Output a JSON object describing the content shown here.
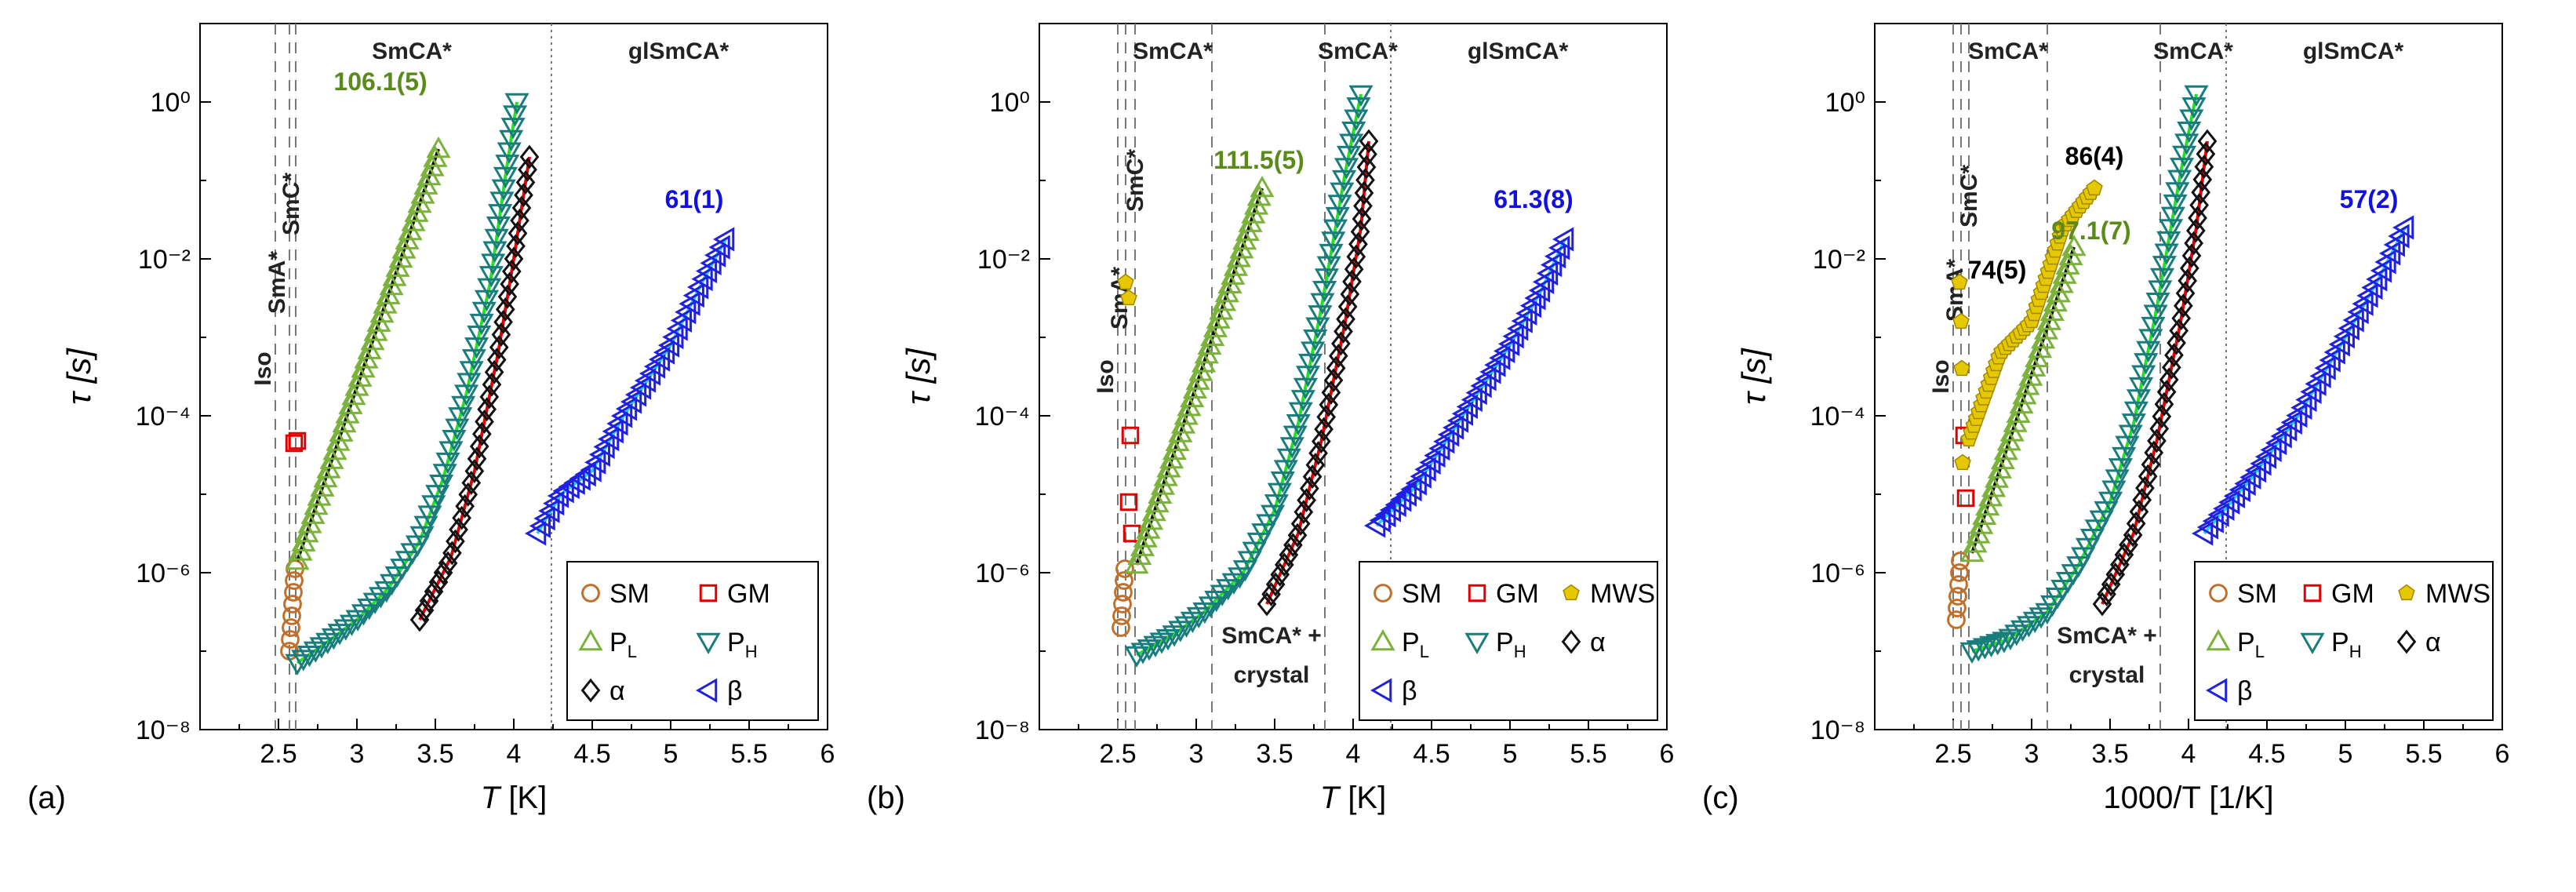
{
  "colors": {
    "sm": "#c0702a",
    "gm": "#e00000",
    "mws": "#e6c800",
    "pl": "#7bb23b",
    "ph": "#1a7d7d",
    "alpha": "#111111",
    "beta": "#2020e0",
    "fit_black": "#000000",
    "fit_green": "#22e022",
    "fit_red": "#e00000",
    "fit_cyan": "#22d0ff",
    "label_green": "#5a8a1a",
    "label_blue": "#1010e0"
  },
  "chart_data": [
    {
      "type": "scatter",
      "panel_label": "(a)",
      "xlabel_italic": "T",
      "xlabel_rest": " [K]",
      "ylabel": "τ [s]",
      "xlim": [
        2.0,
        6.0
      ],
      "ylim_log10": [
        -8,
        1
      ],
      "x_ticks": [
        "2.5",
        "3",
        "3.5",
        "4",
        "4.5",
        "5",
        "5.5",
        "6"
      ],
      "y_ticks": [
        "10⁰",
        "10⁻²",
        "10⁻⁴",
        "10⁻⁶",
        "10⁻⁸"
      ],
      "phase_lines": [
        {
          "x": 2.48,
          "style": "dashed"
        },
        {
          "x": 2.57,
          "style": "dashed"
        },
        {
          "x": 2.61,
          "style": "dashed"
        },
        {
          "x": 4.24,
          "style": "dotted"
        }
      ],
      "phase_labels": [
        {
          "text": "Iso",
          "x": 2.45,
          "logy": -3.4,
          "rotate": true
        },
        {
          "text": "SmA*",
          "x": 2.54,
          "logy": -2.3,
          "rotate": true
        },
        {
          "text": "SmC*",
          "x": 2.63,
          "logy": -1.3,
          "rotate": true
        },
        {
          "text": "SmCA*",
          "x": 3.35,
          "logy": 0.55,
          "rotate": false
        },
        {
          "text": "glSmCA*",
          "x": 5.05,
          "logy": 0.55,
          "rotate": false
        }
      ],
      "value_labels": [
        {
          "text": "106.1(5)",
          "x": 3.15,
          "logy": 0.15,
          "color": "label_green"
        },
        {
          "text": "61(1)",
          "x": 5.15,
          "logy": -1.35,
          "color": "label_blue"
        }
      ],
      "series": [
        {
          "key": "sm",
          "name": "SM",
          "marker": "circle",
          "points": [
            [
              2.57,
              -7.0
            ],
            [
              2.575,
              -6.85
            ],
            [
              2.58,
              -6.7
            ],
            [
              2.585,
              -6.55
            ],
            [
              2.59,
              -6.4
            ],
            [
              2.595,
              -6.25
            ],
            [
              2.6,
              -6.1
            ],
            [
              2.605,
              -5.95
            ]
          ]
        },
        {
          "key": "gm",
          "name": "GM",
          "marker": "square",
          "points": [
            [
              2.6,
              -4.35
            ],
            [
              2.62,
              -4.32
            ]
          ]
        },
        {
          "key": "pl",
          "name": "P_L",
          "marker": "triangle-up",
          "fit": "fit_black",
          "start": [
            2.62,
            -5.85
          ],
          "end": [
            3.52,
            -0.6
          ],
          "n": 46
        },
        {
          "key": "ph",
          "name": "P_H",
          "marker": "triangle-down",
          "fit": "fit_green",
          "points": [
            [
              2.62,
              -7.15
            ],
            [
              2.8,
              -6.9
            ],
            [
              3.0,
              -6.6
            ],
            [
              3.2,
              -6.2
            ],
            [
              3.4,
              -5.6
            ],
            [
              3.55,
              -4.8
            ],
            [
              3.7,
              -3.7
            ],
            [
              3.85,
              -2.3
            ],
            [
              3.95,
              -0.9
            ],
            [
              4.02,
              0.0
            ]
          ],
          "n": 60
        },
        {
          "key": "alpha",
          "name": "α",
          "marker": "diamond",
          "fit": "fit_red",
          "points": [
            [
              3.4,
              -6.6
            ],
            [
              3.6,
              -5.8
            ],
            [
              3.75,
              -4.7
            ],
            [
              3.9,
              -3.2
            ],
            [
              4.0,
              -2.0
            ],
            [
              4.1,
              -0.7
            ]
          ],
          "n": 40
        },
        {
          "key": "beta",
          "name": "β",
          "marker": "triangle-left",
          "fit": "fit_cyan",
          "points": [
            [
              4.15,
              -5.5
            ],
            [
              4.3,
              -5.0
            ],
            [
              4.5,
              -4.7
            ],
            [
              4.7,
              -4.0
            ],
            [
              5.0,
              -3.1
            ],
            [
              5.2,
              -2.3
            ],
            [
              5.35,
              -1.75
            ]
          ],
          "n": 42
        }
      ],
      "legend": {
        "placement": "bottom-right",
        "columns": 2,
        "entries": [
          [
            "sm",
            "SM"
          ],
          [
            "gm",
            "GM"
          ],
          [
            "pl",
            "P",
            "L"
          ],
          [
            "ph",
            "P",
            "H"
          ],
          [
            "alpha",
            "α"
          ],
          [
            "beta",
            "β"
          ]
        ]
      }
    },
    {
      "type": "scatter",
      "panel_label": "(b)",
      "xlabel_italic": "T",
      "xlabel_rest": " [K]",
      "ylabel": "τ [s]",
      "xlim": [
        2.0,
        6.0
      ],
      "ylim_log10": [
        -8,
        1
      ],
      "x_ticks": [
        "2.5",
        "3",
        "3.5",
        "4",
        "4.5",
        "5",
        "5.5",
        "6"
      ],
      "y_ticks": [
        "10⁰",
        "10⁻²",
        "10⁻⁴",
        "10⁻⁶",
        "10⁻⁸"
      ],
      "phase_lines": [
        {
          "x": 2.5,
          "style": "dashed"
        },
        {
          "x": 2.55,
          "style": "dashed"
        },
        {
          "x": 2.61,
          "style": "dashed"
        },
        {
          "x": 3.1,
          "style": "dashed"
        },
        {
          "x": 3.82,
          "style": "dashed"
        },
        {
          "x": 4.24,
          "style": "dotted"
        }
      ],
      "phase_labels": [
        {
          "text": "Iso",
          "x": 2.47,
          "logy": -3.5,
          "rotate": true
        },
        {
          "text": "SmA*",
          "x": 2.56,
          "logy": -2.5,
          "rotate": true
        },
        {
          "text": "SmC*",
          "x": 2.66,
          "logy": -1.0,
          "rotate": true
        },
        {
          "text": "SmCA*",
          "x": 2.85,
          "logy": 0.55,
          "rotate": false
        },
        {
          "text": "SmCA*",
          "x": 4.03,
          "logy": 0.55,
          "rotate": false
        },
        {
          "text": "glSmCA*",
          "x": 5.05,
          "logy": 0.55,
          "rotate": false
        },
        {
          "text": "SmCA* +",
          "x": 3.48,
          "logy": -6.9,
          "rotate": false
        },
        {
          "text": "crystal",
          "x": 3.48,
          "logy": -7.4,
          "rotate": false
        }
      ],
      "value_labels": [
        {
          "text": "111.5(5)",
          "x": 3.4,
          "logy": -0.85,
          "color": "label_green"
        },
        {
          "text": "61.3(8)",
          "x": 5.15,
          "logy": -1.35,
          "color": "label_blue"
        }
      ],
      "series": [
        {
          "key": "sm",
          "name": "SM",
          "marker": "circle",
          "points": [
            [
              2.52,
              -6.7
            ],
            [
              2.525,
              -6.55
            ],
            [
              2.53,
              -6.4
            ],
            [
              2.535,
              -6.25
            ],
            [
              2.54,
              -6.1
            ],
            [
              2.545,
              -5.95
            ]
          ]
        },
        {
          "key": "gm",
          "name": "GM",
          "marker": "square",
          "points": [
            [
              2.58,
              -4.25
            ],
            [
              2.57,
              -5.1
            ],
            [
              2.59,
              -5.5
            ]
          ]
        },
        {
          "key": "mws",
          "name": "MWS",
          "marker": "pentagon",
          "points": [
            [
              2.55,
              -2.3
            ],
            [
              2.57,
              -2.5
            ]
          ]
        },
        {
          "key": "pl",
          "name": "P_L",
          "marker": "triangle-up",
          "fit": "fit_black",
          "start": [
            2.62,
            -5.9
          ],
          "end": [
            3.42,
            -1.1
          ],
          "n": 44
        },
        {
          "key": "ph",
          "name": "P_H",
          "marker": "triangle-down",
          "fit": "fit_green",
          "points": [
            [
              2.62,
              -7.05
            ],
            [
              2.85,
              -6.8
            ],
            [
              3.05,
              -6.5
            ],
            [
              3.3,
              -6.0
            ],
            [
              3.5,
              -5.2
            ],
            [
              3.65,
              -4.1
            ],
            [
              3.8,
              -2.6
            ],
            [
              3.95,
              -0.9
            ],
            [
              4.05,
              0.1
            ]
          ],
          "n": 60
        },
        {
          "key": "alpha",
          "name": "α",
          "marker": "diamond",
          "fit": "fit_red",
          "points": [
            [
              3.45,
              -6.4
            ],
            [
              3.65,
              -5.5
            ],
            [
              3.8,
              -4.3
            ],
            [
              3.95,
              -2.8
            ],
            [
              4.05,
              -1.6
            ],
            [
              4.1,
              -0.5
            ]
          ],
          "n": 40
        },
        {
          "key": "beta",
          "name": "β",
          "marker": "triangle-left",
          "fit": "fit_cyan",
          "points": [
            [
              4.15,
              -5.4
            ],
            [
              4.4,
              -4.9
            ],
            [
              4.7,
              -4.0
            ],
            [
              5.0,
              -3.1
            ],
            [
              5.2,
              -2.4
            ],
            [
              5.35,
              -1.75
            ]
          ],
          "n": 42
        }
      ],
      "legend": {
        "placement": "bottom-right",
        "columns": 3,
        "entries": [
          [
            "sm",
            "SM"
          ],
          [
            "gm",
            "GM"
          ],
          [
            "mws",
            "MWS"
          ],
          [
            "pl",
            "P",
            "L"
          ],
          [
            "ph",
            "P",
            "H"
          ],
          [
            "alpha",
            "α"
          ],
          [
            "beta",
            "β"
          ]
        ]
      }
    },
    {
      "type": "scatter",
      "panel_label": "(c)",
      "xlabel_italic": "",
      "xlabel_rest": "1000/T [1/K]",
      "ylabel": "τ [s]",
      "xlim": [
        2.0,
        6.0
      ],
      "ylim_log10": [
        -8,
        1
      ],
      "x_ticks": [
        "2.5",
        "3",
        "3.5",
        "4",
        "4.5",
        "5",
        "5.5",
        "6"
      ],
      "y_ticks": [
        "10⁰",
        "10⁻²",
        "10⁻⁴",
        "10⁻⁶",
        "10⁻⁸"
      ],
      "phase_lines": [
        {
          "x": 2.5,
          "style": "dashed"
        },
        {
          "x": 2.55,
          "style": "dashed"
        },
        {
          "x": 2.6,
          "style": "dashed"
        },
        {
          "x": 3.1,
          "style": "dashed"
        },
        {
          "x": 3.82,
          "style": "dashed"
        },
        {
          "x": 4.24,
          "style": "dotted"
        }
      ],
      "phase_labels": [
        {
          "text": "Iso",
          "x": 2.47,
          "logy": -3.5,
          "rotate": true
        },
        {
          "text": "SmA*",
          "x": 2.56,
          "logy": -2.4,
          "rotate": true
        },
        {
          "text": "SmC*",
          "x": 2.65,
          "logy": -1.2,
          "rotate": true
        },
        {
          "text": "SmCA*",
          "x": 2.85,
          "logy": 0.55,
          "rotate": false
        },
        {
          "text": "SmCA*",
          "x": 4.03,
          "logy": 0.55,
          "rotate": false
        },
        {
          "text": "glSmCA*",
          "x": 5.05,
          "logy": 0.55,
          "rotate": false
        },
        {
          "text": "SmCA* +",
          "x": 3.48,
          "logy": -6.9,
          "rotate": false
        },
        {
          "text": "crystal",
          "x": 3.48,
          "logy": -7.4,
          "rotate": false
        }
      ],
      "value_labels": [
        {
          "text": "86(4)",
          "x": 3.4,
          "logy": -0.8,
          "color": "fit_black"
        },
        {
          "text": "74(5)",
          "x": 2.78,
          "logy": -2.25,
          "color": "fit_black"
        },
        {
          "text": "97.1(7)",
          "x": 3.38,
          "logy": -1.75,
          "color": "label_green"
        },
        {
          "text": "57(2)",
          "x": 5.15,
          "logy": -1.35,
          "color": "label_blue"
        }
      ],
      "series": [
        {
          "key": "sm",
          "name": "SM",
          "marker": "circle",
          "points": [
            [
              2.52,
              -6.6
            ],
            [
              2.525,
              -6.45
            ],
            [
              2.53,
              -6.3
            ],
            [
              2.535,
              -6.15
            ],
            [
              2.54,
              -6.0
            ],
            [
              2.545,
              -5.85
            ]
          ]
        },
        {
          "key": "gm",
          "name": "GM",
          "marker": "square",
          "points": [
            [
              2.57,
              -4.25
            ],
            [
              2.58,
              -5.05
            ]
          ]
        },
        {
          "key": "mws",
          "name": "MWS",
          "marker": "pentagon",
          "fit": "fit_black",
          "points": [
            [
              2.6,
              -4.3
            ],
            [
              2.8,
              -3.2
            ],
            [
              3.0,
              -2.8
            ],
            [
              3.2,
              -1.6
            ],
            [
              3.4,
              -1.1
            ]
          ],
          "n": 44,
          "extra": [
            [
              2.54,
              -2.3
            ],
            [
              2.55,
              -2.8
            ],
            [
              2.555,
              -3.4
            ],
            [
              2.56,
              -4.6
            ]
          ]
        },
        {
          "key": "pl",
          "name": "P_L",
          "marker": "triangle-up",
          "fit": "fit_black",
          "start": [
            2.62,
            -5.75
          ],
          "end": [
            3.27,
            -1.85
          ],
          "n": 34
        },
        {
          "key": "ph",
          "name": "P_H",
          "marker": "triangle-down",
          "fit": "fit_green",
          "points": [
            [
              2.62,
              -7.0
            ],
            [
              2.85,
              -6.85
            ],
            [
              3.1,
              -6.5
            ],
            [
              3.3,
              -5.9
            ],
            [
              3.5,
              -5.1
            ],
            [
              3.65,
              -4.1
            ],
            [
              3.8,
              -2.6
            ],
            [
              3.95,
              -0.9
            ],
            [
              4.05,
              0.1
            ]
          ],
          "n": 60
        },
        {
          "key": "alpha",
          "name": "α",
          "marker": "diamond",
          "fit": "fit_red",
          "points": [
            [
              3.45,
              -6.4
            ],
            [
              3.65,
              -5.5
            ],
            [
              3.8,
              -4.3
            ],
            [
              3.95,
              -2.8
            ],
            [
              4.05,
              -1.6
            ],
            [
              4.12,
              -0.5
            ]
          ],
          "n": 40
        },
        {
          "key": "beta",
          "name": "β",
          "marker": "triangle-left",
          "fit": "fit_cyan",
          "points": [
            [
              4.1,
              -5.5
            ],
            [
              4.4,
              -4.8
            ],
            [
              4.7,
              -4.0
            ],
            [
              5.0,
              -3.0
            ],
            [
              5.2,
              -2.3
            ],
            [
              5.38,
              -1.6
            ]
          ],
          "n": 42
        }
      ],
      "legend": {
        "placement": "bottom-right",
        "columns": 3,
        "entries": [
          [
            "sm",
            "SM"
          ],
          [
            "gm",
            "GM"
          ],
          [
            "mws",
            "MWS"
          ],
          [
            "pl",
            "P",
            "L"
          ],
          [
            "ph",
            "P",
            "H"
          ],
          [
            "alpha",
            "α"
          ],
          [
            "beta",
            "β"
          ]
        ]
      }
    }
  ]
}
